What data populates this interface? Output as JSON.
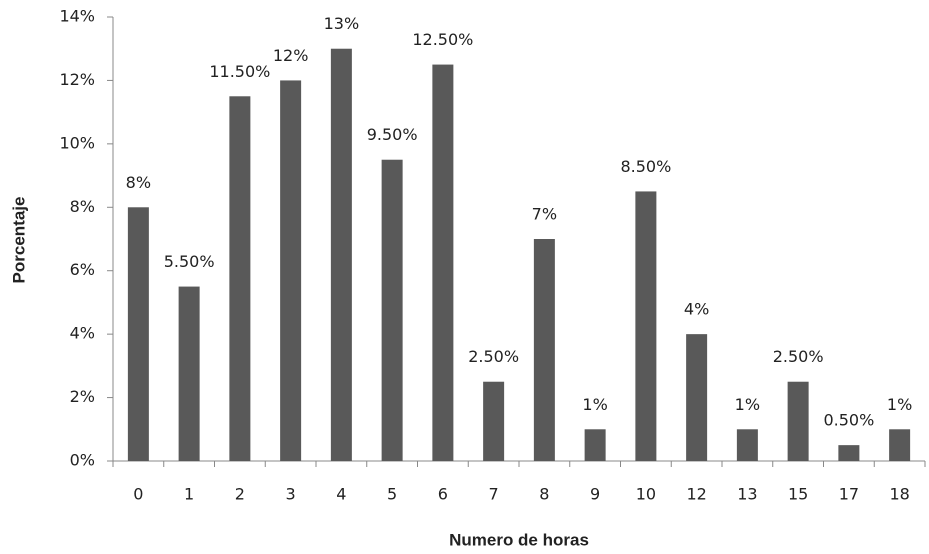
{
  "chart_data": {
    "type": "bar",
    "x_label": "Numero de horas",
    "y_label": "Porcentaje",
    "categories": [
      "0",
      "1",
      "2",
      "3",
      "4",
      "5",
      "6",
      "7",
      "8",
      "9",
      "10",
      "12",
      "13",
      "15",
      "17",
      "18"
    ],
    "values": [
      8,
      5.5,
      11.5,
      12,
      13,
      9.5,
      12.5,
      2.5,
      7,
      1,
      8.5,
      4,
      1,
      2.5,
      0.5,
      1
    ],
    "value_labels": [
      "8%",
      "5.50%",
      "11.50%",
      "12%",
      "13%",
      "9.50%",
      "12.50%",
      "2.50%",
      "7%",
      "1%",
      "8.50%",
      "4%",
      "1%",
      "2.50%",
      "0.50%",
      "1%"
    ],
    "color": "#595959",
    "ylim": [
      0,
      14
    ],
    "yticks": [
      {
        "value": 0,
        "label": "0%"
      },
      {
        "value": 2,
        "label": "2%"
      },
      {
        "value": 4,
        "label": "4%"
      },
      {
        "value": 6,
        "label": "6%"
      },
      {
        "value": 8,
        "label": "8%"
      },
      {
        "value": 10,
        "label": "10%"
      },
      {
        "value": 12,
        "label": "12%"
      },
      {
        "value": 14,
        "label": "14%"
      }
    ],
    "grid": false
  }
}
